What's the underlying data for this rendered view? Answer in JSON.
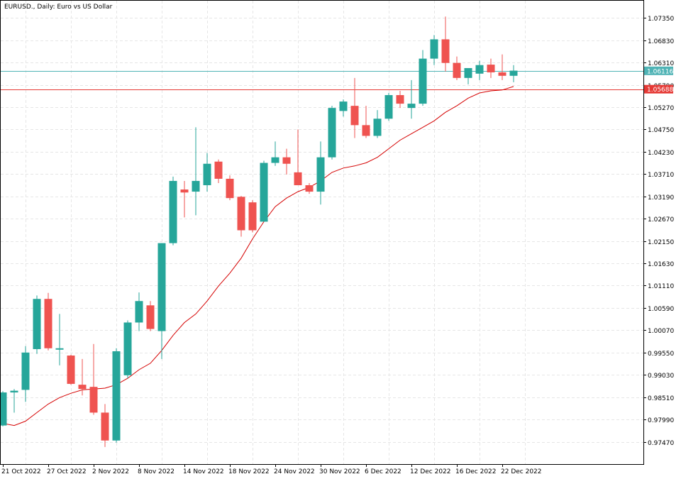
{
  "chart_data": {
    "type": "candlestick",
    "title": "EURUSD., Daily:  Euro vs US Dollar",
    "colors": {
      "bull": "#26a69a",
      "bear": "#ef5350",
      "ma_line": "#d50000",
      "bid_line": "#4fb3b5",
      "ask_line": "#e53935",
      "grid": "#e6e6e6",
      "frame": "#000000"
    },
    "ylim": [
      0.9695,
      1.0775
    ],
    "y_ticks": [
      "1.07350",
      "1.06830",
      "1.06310",
      "1.05790",
      "1.05270",
      "1.04750",
      "1.04230",
      "1.03710",
      "1.03190",
      "1.02670",
      "1.02150",
      "1.01630",
      "1.01110",
      "1.00590",
      "1.00070",
      "0.99550",
      "0.99030",
      "0.98510",
      "0.97990",
      "0.97470"
    ],
    "x_labels": [
      "21 Oct 2022",
      "27 Oct 2022",
      "2 Nov 2022",
      "8 Nov 2022",
      "14 Nov 2022",
      "18 Nov 2022",
      "24 Nov 2022",
      "30 Nov 2022",
      "6 Dec 2022",
      "12 Dec 2022",
      "16 Dec 2022",
      "22 Dec 2022"
    ],
    "x_label_bar_index": [
      0,
      4,
      8,
      12,
      16,
      20,
      24,
      28,
      32,
      36,
      40,
      44
    ],
    "price_tags": [
      {
        "label": "1.06116",
        "value": 1.06116,
        "kind": "bid"
      },
      {
        "label": "1.05688",
        "value": 1.05688,
        "kind": "ask"
      }
    ],
    "candles": [
      {
        "o": 0.9785,
        "h": 0.9865,
        "l": 0.9783,
        "c": 0.9862
      },
      {
        "o": 0.9862,
        "h": 0.987,
        "l": 0.9815,
        "c": 0.9866
      },
      {
        "o": 0.9868,
        "h": 0.997,
        "l": 0.984,
        "c": 0.9955
      },
      {
        "o": 0.9963,
        "h": 1.0088,
        "l": 0.9952,
        "c": 1.008
      },
      {
        "o": 1.008,
        "h": 1.0094,
        "l": 0.996,
        "c": 0.9965
      },
      {
        "o": 0.9965,
        "h": 1.0045,
        "l": 0.9925,
        "c": 0.9965
      },
      {
        "o": 0.9948,
        "h": 0.995,
        "l": 0.988,
        "c": 0.9882
      },
      {
        "o": 0.988,
        "h": 0.994,
        "l": 0.9855,
        "c": 0.987
      },
      {
        "o": 0.9875,
        "h": 0.9975,
        "l": 0.981,
        "c": 0.9815
      },
      {
        "o": 0.9815,
        "h": 0.9835,
        "l": 0.9735,
        "c": 0.975
      },
      {
        "o": 0.975,
        "h": 0.9965,
        "l": 0.9745,
        "c": 0.9958
      },
      {
        "o": 0.9902,
        "h": 1.003,
        "l": 0.9895,
        "c": 1.0025
      },
      {
        "o": 1.0025,
        "h": 1.0095,
        "l": 1.0005,
        "c": 1.0075
      },
      {
        "o": 1.0065,
        "h": 1.0075,
        "l": 1.0005,
        "c": 1.001
      },
      {
        "o": 1.0005,
        "h": 1.021,
        "l": 0.994,
        "c": 1.021
      },
      {
        "o": 1.021,
        "h": 1.0365,
        "l": 1.0205,
        "c": 1.0355
      },
      {
        "o": 1.0335,
        "h": 1.0355,
        "l": 1.027,
        "c": 1.0328
      },
      {
        "o": 1.033,
        "h": 1.048,
        "l": 1.0275,
        "c": 1.0355
      },
      {
        "o": 1.0345,
        "h": 1.042,
        "l": 1.033,
        "c": 1.0395
      },
      {
        "o": 1.04,
        "h": 1.0405,
        "l": 1.035,
        "c": 1.036
      },
      {
        "o": 1.036,
        "h": 1.0368,
        "l": 1.031,
        "c": 1.0315
      },
      {
        "o": 1.0318,
        "h": 1.032,
        "l": 1.0225,
        "c": 1.024
      },
      {
        "o": 1.0305,
        "h": 1.031,
        "l": 1.0235,
        "c": 1.024
      },
      {
        "o": 1.026,
        "h": 1.0402,
        "l": 1.026,
        "c": 1.0397
      },
      {
        "o": 1.0397,
        "h": 1.0447,
        "l": 1.039,
        "c": 1.041
      },
      {
        "o": 1.041,
        "h": 1.043,
        "l": 1.037,
        "c": 1.0395
      },
      {
        "o": 1.0375,
        "h": 1.0475,
        "l": 1.0345,
        "c": 1.0345
      },
      {
        "o": 1.0345,
        "h": 1.035,
        "l": 1.0325,
        "c": 1.033
      },
      {
        "o": 1.033,
        "h": 1.0447,
        "l": 1.03,
        "c": 1.041
      },
      {
        "o": 1.041,
        "h": 1.053,
        "l": 1.0405,
        "c": 1.0525
      },
      {
        "o": 1.0518,
        "h": 1.0545,
        "l": 1.0505,
        "c": 1.054
      },
      {
        "o": 1.053,
        "h": 1.0595,
        "l": 1.0455,
        "c": 1.0485
      },
      {
        "o": 1.0485,
        "h": 1.053,
        "l": 1.0455,
        "c": 1.046
      },
      {
        "o": 1.046,
        "h": 1.052,
        "l": 1.0455,
        "c": 1.05
      },
      {
        "o": 1.05,
        "h": 1.056,
        "l": 1.0495,
        "c": 1.0555
      },
      {
        "o": 1.0555,
        "h": 1.0565,
        "l": 1.0525,
        "c": 1.0535
      },
      {
        "o": 1.0525,
        "h": 1.059,
        "l": 1.05,
        "c": 1.0535
      },
      {
        "o": 1.0535,
        "h": 1.066,
        "l": 1.053,
        "c": 1.064
      },
      {
        "o": 1.064,
        "h": 1.0695,
        "l": 1.0625,
        "c": 1.0685
      },
      {
        "o": 1.0685,
        "h": 1.0738,
        "l": 1.061,
        "c": 1.063
      },
      {
        "o": 1.063,
        "h": 1.0645,
        "l": 1.059,
        "c": 1.0595
      },
      {
        "o": 1.0595,
        "h": 1.061,
        "l": 1.058,
        "c": 1.0618
      },
      {
        "o": 1.0605,
        "h": 1.0635,
        "l": 1.059,
        "c": 1.0625
      },
      {
        "o": 1.0626,
        "h": 1.064,
        "l": 1.0595,
        "c": 1.0608
      },
      {
        "o": 1.0608,
        "h": 1.065,
        "l": 1.059,
        "c": 1.06
      },
      {
        "o": 1.06,
        "h": 1.0625,
        "l": 1.0585,
        "c": 1.0612
      }
    ],
    "moving_average": [
      0.979,
      0.9785,
      0.9795,
      0.9815,
      0.9835,
      0.985,
      0.986,
      0.9868,
      0.987,
      0.9872,
      0.988,
      0.9895,
      0.9915,
      0.993,
      0.996,
      0.9995,
      1.0025,
      1.0045,
      1.0075,
      1.011,
      1.014,
      1.0175,
      1.022,
      1.026,
      1.0295,
      1.0315,
      1.033,
      1.034,
      1.0355,
      1.0375,
      1.0385,
      1.039,
      1.0397,
      1.041,
      1.043,
      1.045,
      1.0465,
      1.048,
      1.0495,
      1.0515,
      1.053,
      1.0548,
      1.056,
      1.0565,
      1.0567,
      1.0575
    ]
  }
}
